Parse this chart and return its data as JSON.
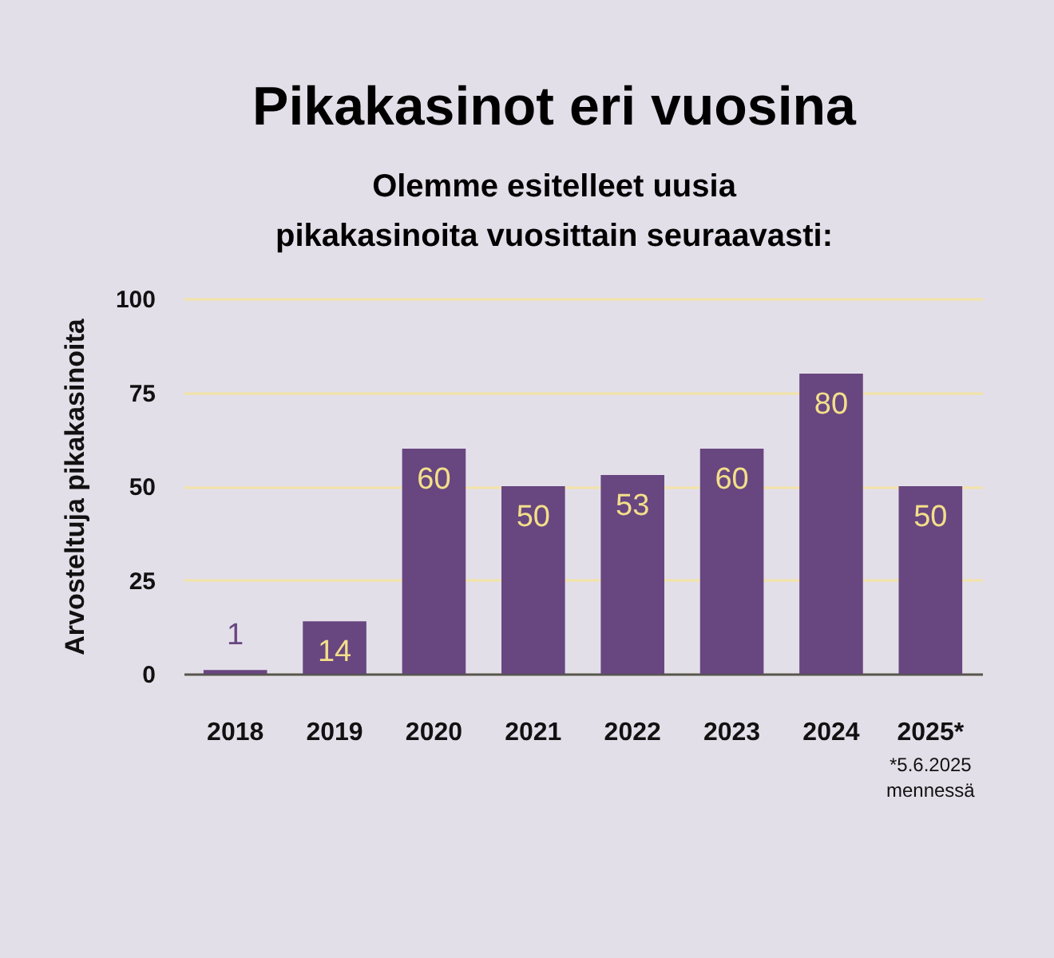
{
  "chart_data": {
    "type": "bar",
    "title": "Pikakasinot eri vuosina",
    "subtitle": "Olemme esitelleet uusia\npikakasinoita vuosittain seuraavasti:",
    "ylabel": "Arvosteltuja pikakasinoita",
    "categories": [
      "2018",
      "2019",
      "2020",
      "2021",
      "2022",
      "2023",
      "2024",
      "2025*"
    ],
    "values": [
      1,
      14,
      60,
      50,
      53,
      60,
      80,
      50
    ],
    "color": "#684680",
    "ylim": [
      0,
      100
    ],
    "yticks": [
      0,
      25,
      50,
      75,
      100
    ],
    "grid": "y",
    "data_labels": true,
    "annotations": [
      "*5.6.2025\nmennessä"
    ]
  }
}
